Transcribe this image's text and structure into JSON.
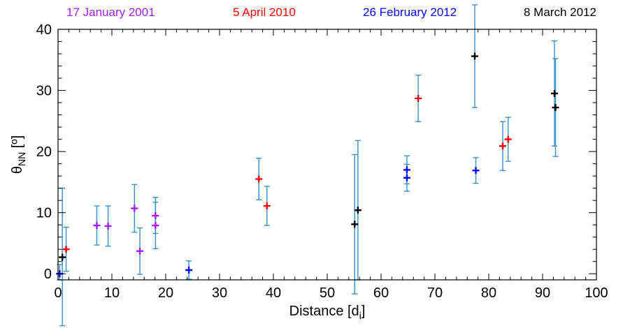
{
  "chart_data": {
    "type": "scatter",
    "title": "",
    "xlabel": "Distance [d",
    "xlabel_sub": "i",
    "xlabel_end": "]",
    "ylabel": "θ",
    "ylabel_sub": "NN",
    "ylabel_end": " [º]",
    "xlim": [
      0,
      100
    ],
    "ylim": [
      -1,
      40
    ],
    "x_ticks": [
      0,
      10,
      20,
      30,
      40,
      50,
      60,
      70,
      80,
      90,
      100
    ],
    "y_ticks": [
      0,
      10,
      20,
      30,
      40
    ],
    "grid": false,
    "legend_position": "top",
    "errorbar_color": "#3a8fc4",
    "series": [
      {
        "name": "17 January 2001",
        "color": "#a020f0",
        "points": [
          {
            "x": 7.2,
            "y": 7.9,
            "lo": 4.7,
            "hi": 11.1
          },
          {
            "x": 9.3,
            "y": 7.8,
            "lo": 4.5,
            "hi": 11.1
          },
          {
            "x": 14.2,
            "y": 10.7,
            "lo": 6.8,
            "hi": 14.6
          },
          {
            "x": 15.2,
            "y": 3.7,
            "lo": -0.1,
            "hi": 7.5
          },
          {
            "x": 18.1,
            "y": 9.5,
            "lo": 6.6,
            "hi": 12.5
          },
          {
            "x": 18.1,
            "y": 7.9,
            "lo": 4.1,
            "hi": 11.7
          }
        ]
      },
      {
        "name": "5 April 2010",
        "color": "#ff0000",
        "points": [
          {
            "x": 1.5,
            "y": 4.0,
            "lo": 0.4,
            "hi": 7.6
          },
          {
            "x": 37.3,
            "y": 15.5,
            "lo": 12.1,
            "hi": 18.9
          },
          {
            "x": 38.8,
            "y": 11.1,
            "lo": 7.9,
            "hi": 14.3
          },
          {
            "x": 66.9,
            "y": 28.7,
            "lo": 24.9,
            "hi": 32.5
          },
          {
            "x": 82.6,
            "y": 20.9,
            "lo": 16.9,
            "hi": 24.9
          },
          {
            "x": 83.6,
            "y": 22.0,
            "lo": 18.4,
            "hi": 25.6
          }
        ]
      },
      {
        "name": "26 February 2012",
        "color": "#0000ff",
        "points": [
          {
            "x": 0.3,
            "y": 0.0,
            "lo": -1.0,
            "hi": 1.5
          },
          {
            "x": 24.3,
            "y": 0.6,
            "lo": -0.9,
            "hi": 2.1
          },
          {
            "x": 64.8,
            "y": 15.7,
            "lo": 13.5,
            "hi": 17.9
          },
          {
            "x": 64.8,
            "y": 17.0,
            "lo": 14.7,
            "hi": 19.3
          },
          {
            "x": 77.6,
            "y": 16.9,
            "lo": 14.8,
            "hi": 19.0
          }
        ]
      },
      {
        "name": "8 March 2012",
        "color": "#000000",
        "points": [
          {
            "x": 0.8,
            "y": 2.7,
            "lo": -8.5,
            "hi": 14.0
          },
          {
            "x": 55.1,
            "y": 8.1,
            "lo": -3.3,
            "hi": 19.5
          },
          {
            "x": 55.7,
            "y": 10.4,
            "lo": -1.0,
            "hi": 21.8
          },
          {
            "x": 77.4,
            "y": 35.6,
            "lo": 27.2,
            "hi": 44.0
          },
          {
            "x": 92.2,
            "y": 29.5,
            "lo": 20.9,
            "hi": 38.1
          },
          {
            "x": 92.4,
            "y": 27.2,
            "lo": 19.2,
            "hi": 35.2
          }
        ]
      }
    ]
  }
}
